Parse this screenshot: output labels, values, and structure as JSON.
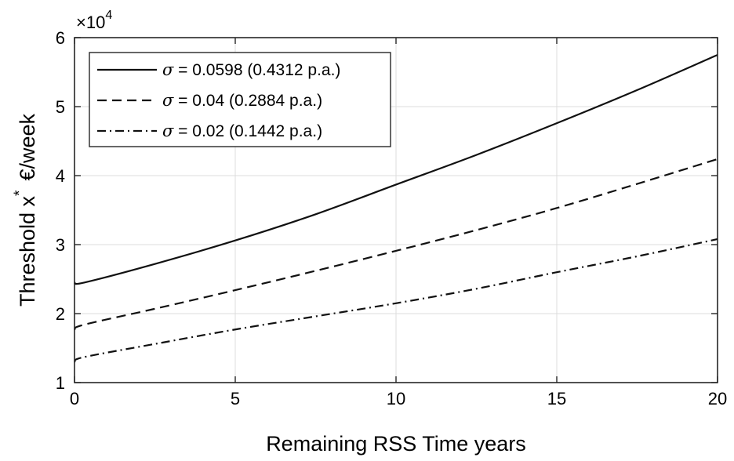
{
  "chart_data": {
    "type": "line",
    "title": "",
    "xlabel": "Remaining RSS Time years",
    "ylabel": "Threshold x * €/week",
    "ylabel_main": "Threshold x",
    "ylabel_sup": "*",
    "ylabel_unit": "€/week",
    "y_exponent_prefix": "×10",
    "y_exponent_power": "4",
    "xlim": [
      0,
      20
    ],
    "ylim": [
      1,
      6
    ],
    "xticks": [
      0,
      5,
      10,
      15,
      20
    ],
    "yticks": [
      1,
      2,
      3,
      4,
      5,
      6
    ],
    "xtick_labels": [
      "0",
      "5",
      "10",
      "15",
      "20"
    ],
    "ytick_labels": [
      "1",
      "2",
      "3",
      "4",
      "5",
      "6"
    ],
    "grid": true,
    "legend_position": "top-left",
    "x": [
      0,
      0.3,
      2.5,
      5,
      7.5,
      10,
      12.5,
      15,
      17.5,
      20
    ],
    "series": [
      {
        "name": "= 0.0598 (0.4312 p.a.)",
        "symbol": "σ",
        "line_style": "solid",
        "values": [
          2.45,
          2.45,
          2.72,
          3.06,
          3.44,
          3.87,
          4.3,
          4.76,
          5.24,
          5.75
        ]
      },
      {
        "name": "= 0.04 (0.2884 p.a.)",
        "symbol": "σ",
        "line_style": "dashed",
        "values": [
          1.77,
          1.84,
          2.07,
          2.34,
          2.62,
          2.91,
          3.21,
          3.53,
          3.88,
          4.24
        ]
      },
      {
        "name": "= 0.02 (0.1442 p.a.)",
        "symbol": "σ",
        "line_style": "dashdot",
        "values": [
          1.3,
          1.37,
          1.56,
          1.77,
          1.96,
          2.15,
          2.36,
          2.6,
          2.83,
          3.08
        ]
      }
    ]
  }
}
